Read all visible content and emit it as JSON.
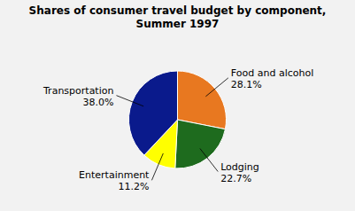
{
  "chart_data": {
    "type": "pie",
    "title": "Shares of consumer travel budget by component,\nSummer 1997",
    "categories": [
      "Food and alcohol",
      "Lodging",
      "Entertainment",
      "Transportation"
    ],
    "values": [
      28.1,
      22.7,
      11.2,
      38.0
    ],
    "value_labels": [
      "28.1%",
      "22.7%",
      "11.2%",
      "38.0%"
    ],
    "data_labels": true,
    "colors": [
      "#E87820",
      "#1E6B1E",
      "#FFFF00",
      "#0A1A8C"
    ]
  }
}
